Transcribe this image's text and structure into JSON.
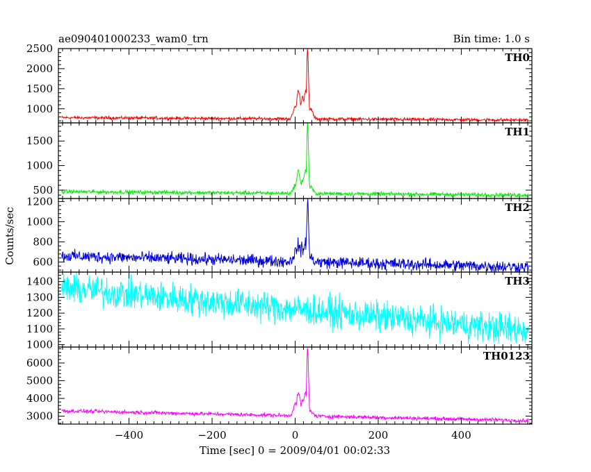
{
  "title_left": "ae090401000233_wam0_trn",
  "title_right": "Bin time: 1.0 s",
  "ylabel": "Counts/sec",
  "xlabel": "Time [sec] 0 = 2009/04/01 00:02:33",
  "chart_data": {
    "type": "line",
    "x_range": [
      -570,
      570
    ],
    "x_ticks": [
      -400,
      -200,
      0,
      200,
      400
    ],
    "x_tick_labels": [
      "−400",
      "−200",
      "0",
      "200",
      "400"
    ],
    "panels": [
      {
        "name": "TH0",
        "color": "#ff0000",
        "ylim": [
          650,
          2500
        ],
        "y_ticks": [
          1000,
          1500,
          2000,
          2500
        ],
        "y_tick_labels": [
          "1000",
          "1500",
          "2000",
          "2500"
        ],
        "baseline_start": 780,
        "baseline_end": 720,
        "noise": 30,
        "burst": [
          {
            "t": 0,
            "peak": 1050
          },
          {
            "t": 8,
            "peak": 1450
          },
          {
            "t": 18,
            "peak": 1300
          },
          {
            "t": 25,
            "peak": 1450
          },
          {
            "t": 30,
            "peak": 2500
          },
          {
            "t": 38,
            "peak": 1000
          }
        ]
      },
      {
        "name": "TH1",
        "color": "#00ee00",
        "ylim": [
          330,
          1870
        ],
        "y_ticks": [
          500,
          1000,
          1500
        ],
        "y_tick_labels": [
          "500",
          "1000",
          "1500"
        ],
        "baseline_start": 470,
        "baseline_end": 400,
        "noise": 30,
        "burst": [
          {
            "t": 0,
            "peak": 600
          },
          {
            "t": 8,
            "peak": 880
          },
          {
            "t": 18,
            "peak": 700
          },
          {
            "t": 25,
            "peak": 900
          },
          {
            "t": 30,
            "peak": 1870
          },
          {
            "t": 38,
            "peak": 560
          }
        ]
      },
      {
        "name": "TH2",
        "color": "#0000dd",
        "ylim": [
          500,
          1230
        ],
        "y_ticks": [
          600,
          800,
          1000,
          1200
        ],
        "y_tick_labels": [
          "600",
          "800",
          "1000",
          "1200"
        ],
        "baseline_start": 660,
        "baseline_end": 550,
        "noise": 45,
        "burst": [
          {
            "t": 0,
            "peak": 700
          },
          {
            "t": 8,
            "peak": 780
          },
          {
            "t": 18,
            "peak": 740
          },
          {
            "t": 25,
            "peak": 780
          },
          {
            "t": 30,
            "peak": 1230
          },
          {
            "t": 38,
            "peak": 650
          }
        ]
      },
      {
        "name": "TH3",
        "color": "#00ffff",
        "ylim": [
          985,
          1460
        ],
        "y_ticks": [
          1000,
          1100,
          1200,
          1300,
          1400
        ],
        "y_tick_labels": [
          "1000",
          "1100",
          "1200",
          "1300",
          "1400"
        ],
        "baseline_start": 1360,
        "baseline_end": 1090,
        "noise": 75,
        "burst": []
      },
      {
        "name": "TH0123",
        "color": "#ff00ff",
        "ylim": [
          2550,
          6900
        ],
        "y_ticks": [
          3000,
          4000,
          5000,
          6000
        ],
        "y_tick_labels": [
          "3000",
          "4000",
          "5000",
          "6000"
        ],
        "baseline_start": 3300,
        "baseline_end": 2750,
        "noise": 80,
        "burst": [
          {
            "t": 0,
            "peak": 3700
          },
          {
            "t": 8,
            "peak": 4300
          },
          {
            "t": 18,
            "peak": 3900
          },
          {
            "t": 25,
            "peak": 4300
          },
          {
            "t": 30,
            "peak": 6850
          },
          {
            "t": 38,
            "peak": 3300
          }
        ]
      }
    ]
  }
}
